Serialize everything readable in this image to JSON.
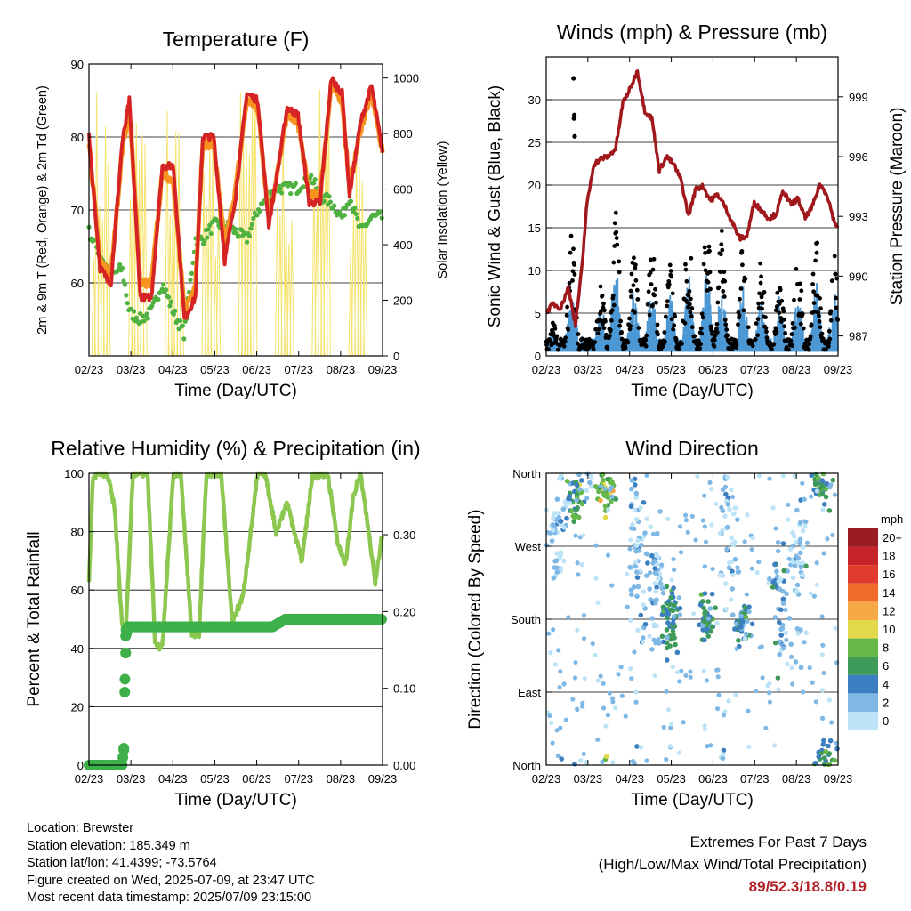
{
  "colors": {
    "temp_2m": "#d62424",
    "temp_9m": "#f7931e",
    "dewpoint": "#4fb240",
    "solar": "#f5e36c",
    "wind": "#4c98d4",
    "gust": "#000000",
    "pressure": "#a0171c",
    "rh": "#8cc850",
    "precip": "#3db04a",
    "extremes": "#b22228"
  },
  "x_ticks": [
    "02/23",
    "03/23",
    "04/23",
    "05/23",
    "06/23",
    "07/23",
    "08/23",
    "09/23"
  ],
  "chart_data": [
    {
      "type": "line",
      "title": "Temperature (F)",
      "xlabel": "Time (Day/UTC)",
      "ylabel": "2m & 9m T (Red, Orange) & 2m Td (Green)",
      "ylabel_right": "Solar Insolation (Yellow)",
      "ylim": [
        50,
        90
      ],
      "yticks": [
        60,
        70,
        80,
        90
      ],
      "ylim_right": [
        0,
        1050
      ],
      "yticks_right": [
        0,
        200,
        400,
        600,
        800,
        1000
      ],
      "x": [
        0,
        0.3,
        0.6,
        0.9,
        1.1,
        1.4,
        1.7,
        2.0,
        2.3,
        2.6,
        2.9,
        3.1,
        3.4,
        3.7,
        4.0,
        4.3,
        4.6,
        4.9,
        5.1,
        5.4,
        5.7,
        6.0,
        6.3,
        6.6,
        6.9,
        7.1,
        7.4,
        7.7,
        8.0
      ],
      "series": [
        {
          "values": [
            80,
            62,
            60,
            79,
            85,
            58,
            58,
            76,
            76,
            55,
            58,
            80,
            80,
            63,
            72,
            86,
            85,
            68,
            74,
            84,
            83,
            71,
            71,
            88,
            86,
            72,
            82,
            87,
            78
          ]
        },
        {
          "values": [
            79,
            63,
            61,
            78,
            84,
            60,
            60,
            75,
            74,
            56,
            60,
            79,
            79,
            65,
            73,
            85,
            84,
            69,
            74,
            83,
            82,
            72,
            72,
            87,
            85,
            73,
            81,
            86,
            78
          ]
        },
        {
          "values": [
            67,
            64,
            61,
            62,
            56,
            55,
            56,
            60,
            56,
            53,
            66,
            66,
            68,
            68,
            67,
            66,
            70,
            72,
            73,
            73,
            73,
            75,
            72,
            71,
            69,
            72,
            67,
            69,
            69
          ]
        }
      ],
      "solar_peaks": [
        0.35,
        1.35,
        2.35,
        3.35,
        4.35,
        5.35,
        6.35,
        7.35
      ],
      "solar_peak_values": [
        1000,
        1000,
        1000,
        830,
        1000,
        900,
        1000,
        1000
      ]
    },
    {
      "type": "line",
      "title": "Winds (mph) & Pressure (mb)",
      "xlabel": "Time (Day/UTC)",
      "ylabel": "Sonic Wind & Gust (Blue, Black)",
      "ylabel_right": "Station Pressure (Maroon)",
      "ylim": [
        0,
        35
      ],
      "yticks": [
        0,
        5,
        10,
        15,
        20,
        25,
        30
      ],
      "ylim_right": [
        986,
        1001
      ],
      "yticks_right": [
        987,
        990,
        993,
        996,
        999
      ],
      "x": [
        0,
        0.2,
        0.4,
        0.6,
        0.7,
        0.8,
        1.0,
        1.1,
        1.3,
        1.5,
        1.7,
        1.9,
        2.0,
        2.1,
        2.3,
        2.5,
        2.7,
        2.9,
        3.1,
        3.3,
        3.5,
        3.7,
        3.9,
        4.1,
        4.3,
        4.5,
        4.7,
        4.9,
        5.1,
        5.3,
        5.5,
        5.7,
        5.9,
        6.1,
        6.3,
        6.5,
        6.7,
        6.9,
        7.1,
        7.3,
        7.5,
        7.7,
        7.9,
        8.0
      ],
      "pressure": [
        988.2,
        988.6,
        988.4,
        989.4,
        988.6,
        987.5,
        990.8,
        993.4,
        995.6,
        995.9,
        996.0,
        996.4,
        997.5,
        998.7,
        999.4,
        1000.3,
        998.3,
        997.9,
        995.3,
        996.0,
        995.6,
        994.8,
        993.0,
        994.4,
        994.5,
        993.8,
        994.1,
        993.5,
        992.7,
        991.9,
        992.0,
        993.7,
        993.3,
        992.9,
        993.1,
        994.3,
        993.6,
        993.9,
        992.9,
        993.5,
        994.6,
        994.1,
        992.7,
        992.5
      ],
      "gust_peaks": [
        0.2,
        0.7,
        1.5,
        1.9,
        2.4,
        2.9,
        3.4,
        3.9,
        4.4,
        4.8,
        5.4,
        5.9,
        6.4,
        6.9,
        7.4,
        7.9
      ],
      "gust_peak_values": [
        4,
        15,
        10,
        18,
        13,
        14,
        12,
        16,
        17,
        15,
        14,
        12,
        11,
        13,
        14,
        12
      ],
      "outliers": [
        [
          0.75,
          32.5
        ],
        [
          0.77,
          28.2
        ],
        [
          0.76,
          27.8
        ],
        [
          0.78,
          25.7
        ]
      ]
    },
    {
      "type": "line",
      "title": "Relative Humidity (%) & Precipitation (in)",
      "xlabel": "Time (Day/UTC)",
      "ylabel": "Percent & Total Rainfall",
      "ylim": [
        0,
        100
      ],
      "yticks": [
        0,
        20,
        40,
        60,
        80,
        100
      ],
      "ylim_right": [
        0,
        0.38
      ],
      "yticks_right": [
        "0.00",
        "0.10",
        "0.20",
        "0.30"
      ],
      "rh_x": [
        0,
        0.1,
        0.2,
        0.5,
        0.7,
        0.9,
        1.0,
        1.2,
        1.6,
        1.8,
        2.0,
        2.3,
        2.5,
        2.8,
        3.0,
        3.2,
        3.6,
        3.9,
        4.2,
        4.6,
        4.8,
        5.1,
        5.4,
        5.8,
        6.1,
        6.2,
        6.5,
        6.8,
        7.0,
        7.2,
        7.4,
        7.8,
        8.0
      ],
      "rh": [
        62,
        97,
        100,
        100,
        88,
        48,
        45,
        100,
        100,
        42,
        40,
        100,
        100,
        45,
        45,
        100,
        100,
        49,
        58,
        100,
        100,
        80,
        90,
        70,
        100,
        99,
        100,
        75,
        69,
        92,
        100,
        63,
        80
      ],
      "precip_x": [
        0,
        0.5,
        0.9,
        0.95,
        0.98,
        1.0,
        1.02,
        1.05,
        1.1,
        2.0,
        3.0,
        4.0,
        5.0,
        5.35,
        6.0,
        7.0,
        8.0
      ],
      "precip": [
        0.0,
        0.0,
        0.0,
        0.02,
        0.11,
        0.146,
        0.17,
        0.18,
        0.18,
        0.18,
        0.18,
        0.18,
        0.18,
        0.19,
        0.19,
        0.19,
        0.19
      ]
    },
    {
      "type": "scatter",
      "title": "Wind Direction",
      "xlabel": "Time (Day/UTC)",
      "ylabel": "Direction (Colored By Speed)",
      "yticks": [
        "North",
        "East",
        "South",
        "West",
        "North"
      ],
      "legend_unit": "mph",
      "legend_labels": [
        "20+",
        "18",
        "16",
        "14",
        "12",
        "10",
        "8",
        "6",
        "4",
        "2",
        "0"
      ],
      "legend_colors": [
        "#9b1c20",
        "#c7232a",
        "#e03b2c",
        "#f06a2a",
        "#f7a947",
        "#e2d94a",
        "#66b84a",
        "#3e9a58",
        "#3b7fc0",
        "#7fb8e4",
        "#bde3f6"
      ],
      "clusters": [
        {
          "x": 0.75,
          "y": 330,
          "spread": 25,
          "n": 40,
          "speed": 6
        },
        {
          "x": 1.6,
          "y": 340,
          "spread": 20,
          "n": 45,
          "speed": 8
        },
        {
          "x": 1.1,
          "y": 350,
          "spread": 15,
          "n": 10,
          "speed": 2
        },
        {
          "x": 2.5,
          "y": 270,
          "spread": 80,
          "n": 50,
          "speed": 2
        },
        {
          "x": 3.4,
          "y": 180,
          "spread": 30,
          "n": 60,
          "speed": 5
        },
        {
          "x": 4.4,
          "y": 180,
          "spread": 25,
          "n": 50,
          "speed": 5
        },
        {
          "x": 5.4,
          "y": 175,
          "spread": 20,
          "n": 45,
          "speed": 4
        },
        {
          "x": 6.4,
          "y": 200,
          "spread": 60,
          "n": 40,
          "speed": 3
        },
        {
          "x": 7.5,
          "y": 345,
          "spread": 20,
          "n": 40,
          "speed": 6
        },
        {
          "x": 7.7,
          "y": 15,
          "spread": 15,
          "n": 20,
          "speed": 5
        },
        {
          "x": 3.0,
          "y": 230,
          "spread": 70,
          "n": 40,
          "speed": 1
        },
        {
          "x": 5.0,
          "y": 300,
          "spread": 80,
          "n": 40,
          "speed": 1
        },
        {
          "x": 0.3,
          "y": 300,
          "spread": 70,
          "n": 40,
          "speed": 1
        },
        {
          "x": 6.9,
          "y": 250,
          "spread": 80,
          "n": 40,
          "speed": 1
        }
      ]
    }
  ],
  "footer": {
    "location": "Location: Brewster",
    "elevation": "Station elevation: 185.349 m",
    "latlon": "Station lat/lon: 41.4399; -73.5764",
    "created": "Figure created on Wed, 2025-07-09, at 23:47 UTC",
    "recent": "Most recent data timestamp: 2025/07/09 23:15:00"
  },
  "extremes": {
    "title": "Extremes For Past 7 Days",
    "subtitle": "(High/Low/Max Wind/Total Precipitation)",
    "values": "89/52.3/18.8/0.19"
  }
}
